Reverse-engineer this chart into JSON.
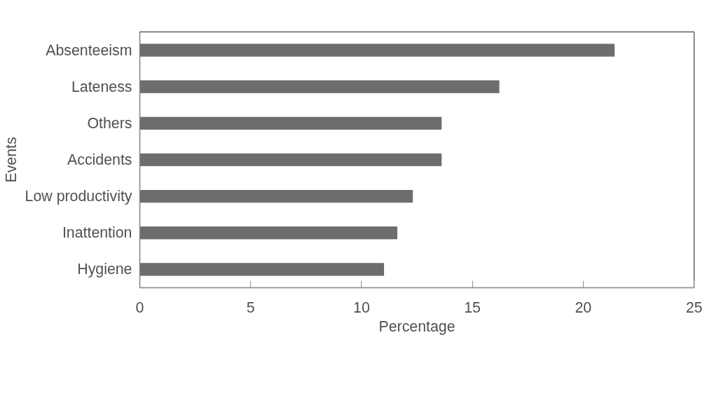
{
  "chart_data": {
    "type": "bar",
    "orientation": "horizontal",
    "xlabel": "Percentage",
    "ylabel": "Events",
    "categories": [
      "Absenteeism",
      "Lateness",
      "Others",
      "Accidents",
      "Low productivity",
      "Inattention",
      "Hygiene"
    ],
    "values": [
      21.4,
      16.2,
      13.6,
      13.6,
      12.3,
      11.6,
      11.0
    ],
    "color": "#6d6d6d",
    "xlim": [
      0,
      25
    ],
    "xticks": [
      0,
      5,
      10,
      15,
      20,
      25
    ],
    "grid": false
  }
}
